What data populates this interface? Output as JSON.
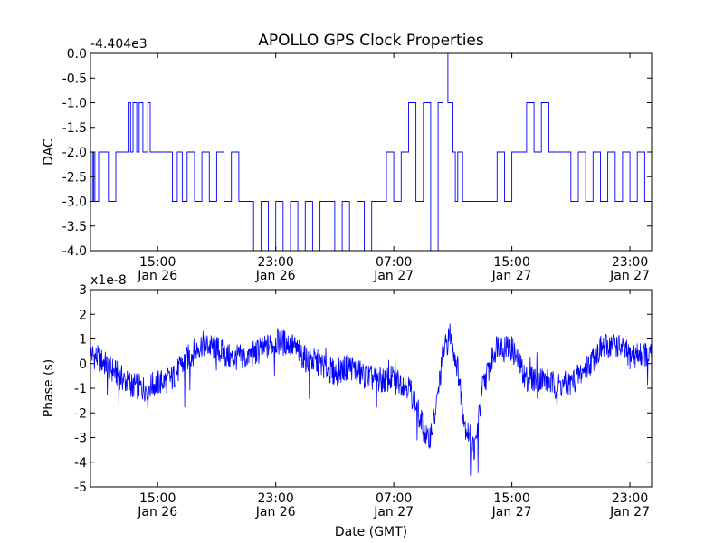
{
  "figure": {
    "title": "APOLLO GPS Clock Properties",
    "background": "#ffffff",
    "line_color": "#0000ff"
  },
  "chart_data": [
    {
      "type": "line",
      "title": "APOLLO GPS Clock Properties",
      "ylabel": "DAC",
      "xlabel": "",
      "offset_label": "-4.404e3",
      "y_scale_note": "values are DAC - 4404",
      "xlim": [
        "2015-01-26 10:27",
        "2015-01-28 00:28"
      ],
      "ylim": [
        -4.0,
        0.0
      ],
      "yticks": [
        "0.0",
        "-0.5",
        "-1.0",
        "-1.5",
        "-2.0",
        "-2.5",
        "-3.0",
        "-3.5",
        "-4.0"
      ],
      "xticks": [
        {
          "time": "15:00",
          "date": "Jan 26"
        },
        {
          "time": "23:00",
          "date": "Jan 26"
        },
        {
          "time": "07:00",
          "date": "Jan 27"
        },
        {
          "time": "15:00",
          "date": "Jan 27"
        },
        {
          "time": "23:00",
          "date": "Jan 27"
        }
      ],
      "grid": false,
      "series": [
        {
          "color": "#0000ff",
          "x": [
            "2015-01-26 10:27",
            "2015-01-26 10:35",
            "2015-01-26 10:40",
            "2015-01-26 10:45",
            "2015-01-26 11:00",
            "2015-01-26 11:30",
            "2015-01-26 11:40",
            "2015-01-26 12:10",
            "2015-01-26 12:40",
            "2015-01-26 13:00",
            "2015-01-26 13:10",
            "2015-01-26 13:20",
            "2015-01-26 13:35",
            "2015-01-26 13:45",
            "2015-01-26 14:00",
            "2015-01-26 14:20",
            "2015-01-26 14:30",
            "2015-01-26 15:00",
            "2015-01-26 15:20",
            "2015-01-26 15:40",
            "2015-01-26 16:00",
            "2015-01-26 16:20",
            "2015-01-26 16:40",
            "2015-01-26 17:00",
            "2015-01-26 17:30",
            "2015-01-26 18:00",
            "2015-01-26 18:30",
            "2015-01-26 19:00",
            "2015-01-26 19:30",
            "2015-01-26 20:00",
            "2015-01-26 20:30",
            "2015-01-26 21:00",
            "2015-01-26 21:30",
            "2015-01-26 22:00",
            "2015-01-26 22:30",
            "2015-01-26 23:00",
            "2015-01-26 23:30",
            "2015-01-27 00:00",
            "2015-01-27 00:30",
            "2015-01-27 01:00",
            "2015-01-27 01:30",
            "2015-01-27 02:00",
            "2015-01-27 02:30",
            "2015-01-27 03:00",
            "2015-01-27 03:30",
            "2015-01-27 04:00",
            "2015-01-27 04:30",
            "2015-01-27 05:00",
            "2015-01-27 05:30",
            "2015-01-27 06:00",
            "2015-01-27 06:30",
            "2015-01-27 07:00",
            "2015-01-27 07:30",
            "2015-01-27 08:00",
            "2015-01-27 08:30",
            "2015-01-27 09:00",
            "2015-01-27 09:30",
            "2015-01-27 10:00",
            "2015-01-27 10:20",
            "2015-01-27 10:40",
            "2015-01-27 11:00",
            "2015-01-27 11:10",
            "2015-01-27 11:20",
            "2015-01-27 11:40",
            "2015-01-27 12:00",
            "2015-01-27 12:30",
            "2015-01-27 13:00",
            "2015-01-27 13:30",
            "2015-01-27 14:00",
            "2015-01-27 14:30",
            "2015-01-27 15:00",
            "2015-01-27 15:30",
            "2015-01-27 16:00",
            "2015-01-27 16:30",
            "2015-01-27 17:00",
            "2015-01-27 17:30",
            "2015-01-27 18:00",
            "2015-01-27 18:30",
            "2015-01-27 19:00",
            "2015-01-27 19:30",
            "2015-01-27 20:00",
            "2015-01-27 20:30",
            "2015-01-27 21:00",
            "2015-01-27 21:30",
            "2015-01-27 22:00",
            "2015-01-27 22:30",
            "2015-01-27 23:00",
            "2015-01-27 23:30",
            "2015-01-28 00:00",
            "2015-01-28 00:28"
          ],
          "y": [
            -2.0,
            -3.0,
            -2.0,
            -3.0,
            -2.0,
            -2.0,
            -3.0,
            -2.0,
            -2.0,
            -1.0,
            -2.0,
            -1.0,
            -2.0,
            -1.0,
            -2.0,
            -1.0,
            -2.0,
            -2.0,
            -2.0,
            -2.0,
            -3.0,
            -2.0,
            -3.0,
            -2.0,
            -3.0,
            -2.0,
            -3.0,
            -2.0,
            -3.0,
            -2.0,
            -3.0,
            -3.0,
            -4.0,
            -3.0,
            -4.0,
            -3.0,
            -4.0,
            -3.0,
            -4.0,
            -3.0,
            -4.0,
            -3.0,
            -3.0,
            -4.0,
            -3.0,
            -4.0,
            -3.0,
            -4.0,
            -3.0,
            -3.0,
            -2.0,
            -3.0,
            -2.0,
            -1.0,
            -3.0,
            -1.0,
            -4.0,
            -1.0,
            0.0,
            -1.0,
            -2.0,
            -3.0,
            -2.0,
            -3.0,
            -3.0,
            -3.0,
            -3.0,
            -3.0,
            -2.0,
            -3.0,
            -2.0,
            -2.0,
            -1.0,
            -2.0,
            -1.0,
            -2.0,
            -2.0,
            -2.0,
            -3.0,
            -2.0,
            -3.0,
            -2.0,
            -3.0,
            -2.0,
            -3.0,
            -2.0,
            -3.0,
            -2.0,
            -3.0,
            -2.0
          ]
        }
      ]
    },
    {
      "type": "line",
      "title": "",
      "ylabel": "Phase (s)",
      "xlabel": "Date (GMT)",
      "offset_label": "x1e-8",
      "xlim": [
        "2015-01-26 10:27",
        "2015-01-28 00:28"
      ],
      "ylim": [
        -5,
        3
      ],
      "yticks": [
        "3",
        "2",
        "1",
        "0",
        "-1",
        "-2",
        "-3",
        "-4",
        "-5"
      ],
      "xticks": [
        {
          "time": "15:00",
          "date": "Jan 26"
        },
        {
          "time": "23:00",
          "date": "Jan 26"
        },
        {
          "time": "07:00",
          "date": "Jan 27"
        },
        {
          "time": "15:00",
          "date": "Jan 27"
        },
        {
          "time": "23:00",
          "date": "Jan 27"
        }
      ],
      "grid": false,
      "series": [
        {
          "color": "#0000ff",
          "x": [
            "2015-01-26 10:27",
            "2015-01-26 11:00",
            "2015-01-26 12:00",
            "2015-01-26 13:00",
            "2015-01-26 14:00",
            "2015-01-26 15:00",
            "2015-01-26 16:00",
            "2015-01-26 17:00",
            "2015-01-26 18:00",
            "2015-01-26 19:00",
            "2015-01-26 20:00",
            "2015-01-26 21:00",
            "2015-01-26 22:00",
            "2015-01-26 23:00",
            "2015-01-27 00:00",
            "2015-01-27 01:00",
            "2015-01-27 02:00",
            "2015-01-27 03:00",
            "2015-01-27 04:00",
            "2015-01-27 05:00",
            "2015-01-27 06:00",
            "2015-01-27 07:00",
            "2015-01-27 08:00",
            "2015-01-27 08:40",
            "2015-01-27 09:20",
            "2015-01-27 09:50",
            "2015-01-27 10:20",
            "2015-01-27 10:50",
            "2015-01-27 11:20",
            "2015-01-27 11:50",
            "2015-01-27 12:30",
            "2015-01-27 13:00",
            "2015-01-27 14:00",
            "2015-01-27 15:00",
            "2015-01-27 16:00",
            "2015-01-27 17:00",
            "2015-01-27 18:00",
            "2015-01-27 19:00",
            "2015-01-27 20:00",
            "2015-01-27 21:00",
            "2015-01-27 22:00",
            "2015-01-27 23:00",
            "2015-01-28 00:00",
            "2015-01-28 00:28"
          ],
          "y": [
            0.4,
            0.2,
            -0.3,
            -0.8,
            -1.0,
            -0.8,
            -0.6,
            0.2,
            0.8,
            0.6,
            0.2,
            0.3,
            0.5,
            0.9,
            0.8,
            0.2,
            0.0,
            -0.4,
            -0.1,
            -0.5,
            -0.7,
            -0.6,
            -0.9,
            -2.0,
            -3.2,
            -2.0,
            0.4,
            1.2,
            -0.2,
            -2.5,
            -3.5,
            -1.0,
            0.8,
            0.6,
            -0.6,
            -0.6,
            -0.9,
            -0.8,
            -0.2,
            0.6,
            0.8,
            0.3,
            0.4,
            0.3
          ]
        }
      ]
    }
  ]
}
